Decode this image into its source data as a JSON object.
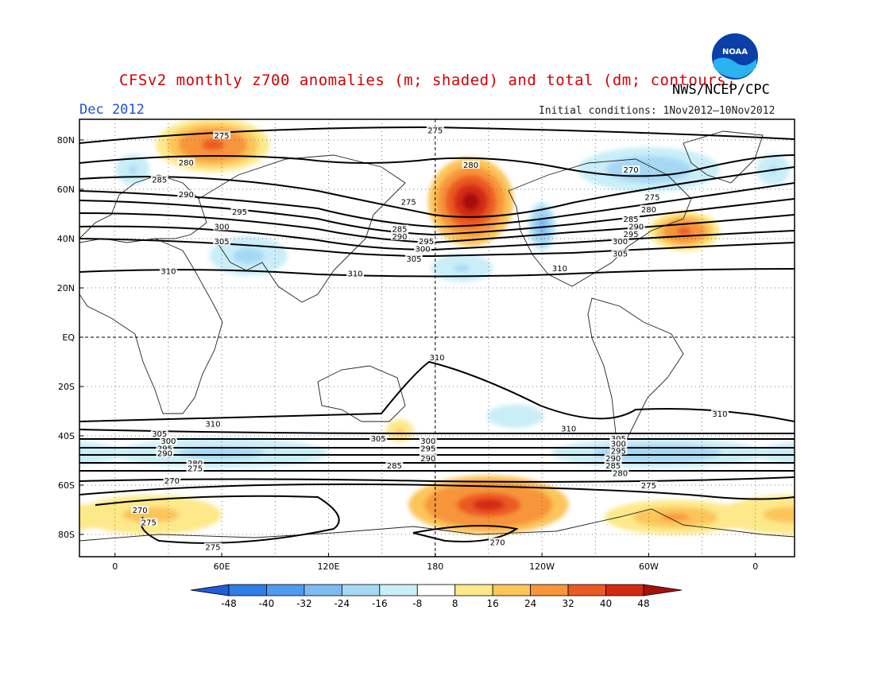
{
  "title": "CFSv2 monthly z700 anomalies (m; shaded) and total (dm; contours)",
  "agency": "NWS/NCEP/CPC",
  "logo": {
    "text": "NOAA",
    "icon": "noaa-logo"
  },
  "month": "Dec 2012",
  "initial_conditions": "Initial conditions: 1Nov2012—10Nov2012",
  "chart_data": {
    "type": "heatmap",
    "variable": "z700",
    "lat_ticks": [
      "80N",
      "60N",
      "40N",
      "20N",
      "EQ",
      "20S",
      "40S",
      "60S",
      "80S"
    ],
    "lon_ticks": [
      "0",
      "60E",
      "120E",
      "180",
      "120W",
      "60W",
      "0"
    ],
    "colorbar": {
      "ticks": [
        "-48",
        "-40",
        "-32",
        "-24",
        "-16",
        "-8",
        "8",
        "16",
        "24",
        "32",
        "40",
        "48"
      ],
      "colors": [
        "#1c5fd8",
        "#2f7de6",
        "#4f9bee",
        "#7fbbf3",
        "#a6d8f5",
        "#c9eef8",
        "#ffffff",
        "#fde98a",
        "#fcc55a",
        "#f7953a",
        "#ec5a23",
        "#d42a12",
        "#a6110a"
      ]
    },
    "contour_levels": [
      270,
      275,
      280,
      285,
      290,
      295,
      300,
      305,
      310
    ],
    "contour_labels": [
      {
        "lon": 60,
        "lat": 82,
        "v": "275"
      },
      {
        "lon": 180,
        "lat": 84,
        "v": "275"
      },
      {
        "lon": 40,
        "lat": 71,
        "v": "280"
      },
      {
        "lon": 25,
        "lat": 64,
        "v": "285"
      },
      {
        "lon": 40,
        "lat": 58,
        "v": "290"
      },
      {
        "lon": 70,
        "lat": 51,
        "v": "295"
      },
      {
        "lon": 60,
        "lat": 45,
        "v": "300"
      },
      {
        "lon": 60,
        "lat": 39,
        "v": "305"
      },
      {
        "lon": 30,
        "lat": 27,
        "v": "310"
      },
      {
        "lon": 135,
        "lat": 26,
        "v": "310"
      },
      {
        "lon": 200,
        "lat": 70,
        "v": "280"
      },
      {
        "lon": 165,
        "lat": 55,
        "v": "275"
      },
      {
        "lon": 160,
        "lat": 44,
        "v": "285"
      },
      {
        "lon": 160,
        "lat": 41,
        "v": "290"
      },
      {
        "lon": 175,
        "lat": 39,
        "v": "295"
      },
      {
        "lon": 173,
        "lat": 36,
        "v": "300"
      },
      {
        "lon": 168,
        "lat": 32,
        "v": "305"
      },
      {
        "lon": 250,
        "lat": 28,
        "v": "310"
      },
      {
        "lon": 290,
        "lat": 68,
        "v": "270"
      },
      {
        "lon": 302,
        "lat": 57,
        "v": "275"
      },
      {
        "lon": 300,
        "lat": 52,
        "v": "280"
      },
      {
        "lon": 290,
        "lat": 48,
        "v": "285"
      },
      {
        "lon": 293,
        "lat": 45,
        "v": "290"
      },
      {
        "lon": 290,
        "lat": 42,
        "v": "295"
      },
      {
        "lon": 284,
        "lat": 39,
        "v": "300"
      },
      {
        "lon": 284,
        "lat": 34,
        "v": "305"
      },
      {
        "lon": 181,
        "lat": -8,
        "v": "310"
      },
      {
        "lon": 55,
        "lat": -35,
        "v": "310"
      },
      {
        "lon": 255,
        "lat": -37,
        "v": "310"
      },
      {
        "lon": 340,
        "lat": -31,
        "v": "310"
      },
      {
        "lon": 25,
        "lat": -39,
        "v": "305"
      },
      {
        "lon": 30,
        "lat": -42,
        "v": "300"
      },
      {
        "lon": 28,
        "lat": -45,
        "v": "295"
      },
      {
        "lon": 28,
        "lat": -47,
        "v": "290"
      },
      {
        "lon": 45,
        "lat": -51,
        "v": "280"
      },
      {
        "lon": 45,
        "lat": -53,
        "v": "275"
      },
      {
        "lon": 32,
        "lat": -58,
        "v": "270"
      },
      {
        "lon": 14,
        "lat": -70,
        "v": "270"
      },
      {
        "lon": 19,
        "lat": -75,
        "v": "275"
      },
      {
        "lon": 55,
        "lat": -85,
        "v": "275"
      },
      {
        "lon": 148,
        "lat": -41,
        "v": "305"
      },
      {
        "lon": 176,
        "lat": -42,
        "v": "300"
      },
      {
        "lon": 176,
        "lat": -45,
        "v": "295"
      },
      {
        "lon": 176,
        "lat": -49,
        "v": "290"
      },
      {
        "lon": 157,
        "lat": -52,
        "v": "285"
      },
      {
        "lon": 215,
        "lat": -83,
        "v": "270"
      },
      {
        "lon": 283,
        "lat": -41,
        "v": "305"
      },
      {
        "lon": 283,
        "lat": -43,
        "v": "300"
      },
      {
        "lon": 283,
        "lat": -46,
        "v": "295"
      },
      {
        "lon": 280,
        "lat": -49,
        "v": "290"
      },
      {
        "lon": 280,
        "lat": -52,
        "v": "285"
      },
      {
        "lon": 284,
        "lat": -55,
        "v": "280"
      },
      {
        "lon": 300,
        "lat": -60,
        "v": "275"
      }
    ],
    "anomalies": [
      {
        "lon": 55,
        "lat": 78,
        "rx": 32,
        "ry": 11,
        "v": 36
      },
      {
        "lon": 200,
        "lat": 55,
        "rx": 24,
        "ry": 18,
        "v": 50
      },
      {
        "lon": 320,
        "lat": 43,
        "rx": 20,
        "ry": 8,
        "v": 34
      },
      {
        "lon": 300,
        "lat": 68,
        "rx": 40,
        "ry": 9,
        "v": -24
      },
      {
        "lon": 240,
        "lat": 45,
        "rx": 8,
        "ry": 10,
        "v": -28
      },
      {
        "lon": 75,
        "lat": 33,
        "rx": 22,
        "ry": 8,
        "v": -22
      },
      {
        "lon": 10,
        "lat": 68,
        "rx": 12,
        "ry": 8,
        "v": -18
      },
      {
        "lon": 195,
        "lat": 28,
        "rx": 22,
        "ry": 7,
        "v": -18
      },
      {
        "lon": 160,
        "lat": -38,
        "rx": 10,
        "ry": 6,
        "v": 16
      },
      {
        "lon": 225,
        "lat": -32,
        "rx": 20,
        "ry": 6,
        "v": -16
      },
      {
        "lon": 60,
        "lat": -47,
        "rx": 60,
        "ry": 6,
        "v": -22
      },
      {
        "lon": 305,
        "lat": -47,
        "rx": 60,
        "ry": 6,
        "v": -24
      },
      {
        "lon": 210,
        "lat": -68,
        "rx": 45,
        "ry": 12,
        "v": 42
      },
      {
        "lon": 315,
        "lat": -73,
        "rx": 40,
        "ry": 7,
        "v": 24
      },
      {
        "lon": 20,
        "lat": -72,
        "rx": 40,
        "ry": 8,
        "v": 22
      }
    ]
  }
}
